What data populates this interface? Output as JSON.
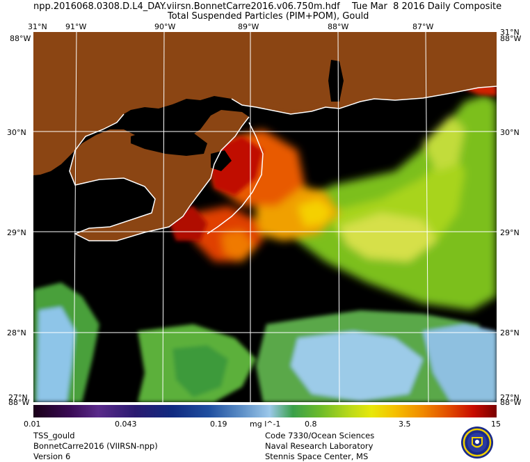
{
  "header": {
    "file_name": "npp.2016068.0308.D.L4_DAY.viirsn.BonnetCarre2016.v06.750m.hdf",
    "date_label": "Tue Mar  8 2016 Daily Composite",
    "product": "Total Suspended Particles (PIM+POM), Gould"
  },
  "map": {
    "longitude_labels": [
      "91°W",
      "90°W",
      "89°W",
      "88°W",
      "87°W"
    ],
    "latitude_labels": [
      "31°N",
      "30°N",
      "29°N",
      "28°N",
      "27°N"
    ],
    "corner_label_top_right": "88°W",
    "corner_label_bottom_left": "88°W",
    "land_color": "#8b4513",
    "no_data_color": "#000000",
    "grid_color": "#ffffff"
  },
  "colorbar": {
    "ticks": [
      "0.01",
      "0.043",
      "0.19",
      "0.8",
      "3.5",
      "15"
    ],
    "unit": "mg l^-1",
    "scale": "log"
  },
  "footer": {
    "left": [
      "TSS_gould",
      "BonnetCarre2016 (VIIRSN-npp)",
      "Version 6"
    ],
    "right": [
      "Code 7330/Ocean Sciences",
      "Naval Research Laboratory",
      "Stennis Space Center, MS"
    ]
  },
  "logo": "naval-research-laboratory-seal"
}
